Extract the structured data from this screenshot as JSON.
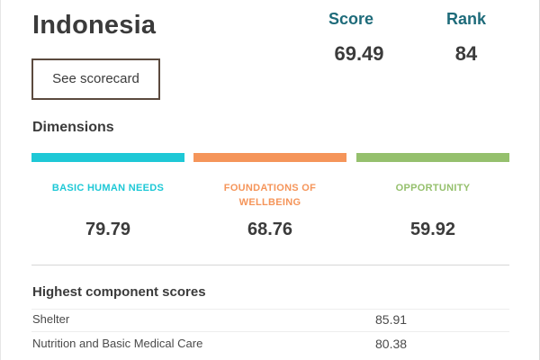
{
  "country": "Indonesia",
  "scorecard_button": "See scorecard",
  "score": {
    "label": "Score",
    "value": "69.49"
  },
  "rank": {
    "label": "Rank",
    "value": "84"
  },
  "dimensions": {
    "heading": "Dimensions",
    "items": [
      {
        "name": "BASIC HUMAN NEEDS",
        "value": "79.79",
        "color": "#1ec8d6"
      },
      {
        "name": "FOUNDATIONS OF WELLBEING",
        "value": "68.76",
        "color": "#f5955a"
      },
      {
        "name": "OPPORTUNITY",
        "value": "59.92",
        "color": "#95c06d"
      }
    ]
  },
  "components": {
    "heading": "Highest component scores",
    "rows": [
      {
        "name": "Shelter",
        "value": "85.91"
      },
      {
        "name": "Nutrition and Basic Medical Care",
        "value": "80.38"
      }
    ]
  }
}
